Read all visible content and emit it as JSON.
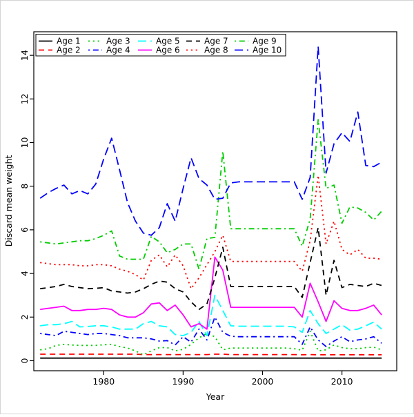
{
  "figure": {
    "background": "#ffffff",
    "frame_color": "#d4d4d4"
  },
  "chart_data": {
    "type": "line",
    "title": "",
    "xlabel": "Year",
    "ylabel": "Discard mean weight",
    "grid": false,
    "legend_position": "top-left",
    "legend_columns": 5,
    "x_ticks": [
      1980,
      1990,
      2000,
      2010
    ],
    "y_ticks": [
      0,
      2,
      4,
      6,
      8,
      10,
      12,
      14
    ],
    "xlim": [
      1971.2,
      2016.9
    ],
    "ylim": [
      -0.46,
      15.08
    ],
    "x": [
      1972,
      1973,
      1974,
      1975,
      1976,
      1977,
      1978,
      1979,
      1980,
      1981,
      1982,
      1983,
      1984,
      1985,
      1986,
      1987,
      1988,
      1989,
      1990,
      1991,
      1992,
      1993,
      1994,
      1995,
      1996,
      1997,
      1998,
      1999,
      2000,
      2001,
      2002,
      2003,
      2004,
      2005,
      2006,
      2007,
      2008,
      2009,
      2010,
      2011,
      2012,
      2013,
      2014,
      2015
    ],
    "series": [
      {
        "name": "Age 1",
        "color": "#000000",
        "linestyle": "solid",
        "values": [
          0.12,
          0.12,
          0.12,
          0.12,
          0.12,
          0.12,
          0.12,
          0.12,
          0.12,
          0.12,
          0.12,
          0.12,
          0.12,
          0.12,
          0.12,
          0.12,
          0.12,
          0.12,
          0.12,
          0.12,
          0.12,
          0.12,
          0.12,
          0.12,
          0.12,
          0.12,
          0.12,
          0.12,
          0.12,
          0.12,
          0.12,
          0.12,
          0.12,
          0.12,
          0.12,
          0.12,
          0.12,
          0.12,
          0.12,
          0.12,
          0.12,
          0.12,
          0.12,
          0.12
        ]
      },
      {
        "name": "Age 2",
        "color": "#FF0000",
        "linestyle": "dashed",
        "values": [
          0.3,
          0.3,
          0.3,
          0.3,
          0.3,
          0.3,
          0.3,
          0.3,
          0.3,
          0.3,
          0.3,
          0.3,
          0.3,
          0.28,
          0.28,
          0.28,
          0.28,
          0.28,
          0.28,
          0.28,
          0.28,
          0.28,
          0.3,
          0.3,
          0.28,
          0.28,
          0.28,
          0.28,
          0.28,
          0.28,
          0.28,
          0.28,
          0.28,
          0.27,
          0.28,
          0.27,
          0.27,
          0.27,
          0.27,
          0.27,
          0.27,
          0.27,
          0.27,
          0.27
        ]
      },
      {
        "name": "Age 3",
        "color": "#00CD00",
        "linestyle": "dotted",
        "values": [
          0.5,
          0.55,
          0.7,
          0.75,
          0.72,
          0.7,
          0.7,
          0.7,
          0.73,
          0.75,
          0.65,
          0.58,
          0.45,
          0.27,
          0.45,
          0.6,
          0.6,
          0.45,
          0.52,
          0.75,
          1.05,
          1.25,
          1.1,
          0.5,
          0.58,
          0.58,
          0.58,
          0.58,
          0.58,
          0.58,
          0.58,
          0.58,
          0.55,
          0.48,
          1.35,
          0.45,
          0.5,
          0.72,
          0.6,
          0.55,
          0.55,
          0.6,
          0.62,
          0.5
        ]
      },
      {
        "name": "Age 4",
        "color": "#0000FF",
        "linestyle": "dotdash",
        "values": [
          1.25,
          1.2,
          1.15,
          1.35,
          1.3,
          1.25,
          1.2,
          1.25,
          1.25,
          1.2,
          1.15,
          1.05,
          1.05,
          1.05,
          1.0,
          0.9,
          0.92,
          0.72,
          1.1,
          0.85,
          1.45,
          0.95,
          2.0,
          1.3,
          1.12,
          1.1,
          1.1,
          1.1,
          1.1,
          1.1,
          1.1,
          1.1,
          1.1,
          0.75,
          1.55,
          0.95,
          0.65,
          0.9,
          1.1,
          0.87,
          0.95,
          1.0,
          1.1,
          0.8
        ]
      },
      {
        "name": "Age 5",
        "color": "#00FFFF",
        "linestyle": "longdash",
        "values": [
          1.6,
          1.65,
          1.65,
          1.7,
          1.8,
          1.55,
          1.57,
          1.6,
          1.6,
          1.55,
          1.45,
          1.45,
          1.45,
          1.7,
          1.8,
          1.6,
          1.55,
          1.2,
          1.15,
          1.3,
          1.8,
          1.15,
          3.0,
          2.3,
          1.6,
          1.58,
          1.58,
          1.58,
          1.58,
          1.58,
          1.58,
          1.58,
          1.55,
          1.3,
          2.3,
          1.7,
          1.25,
          1.45,
          1.65,
          1.4,
          1.45,
          1.6,
          1.77,
          1.45
        ]
      },
      {
        "name": "Age 6",
        "color": "#FF00FF",
        "linestyle": "solid",
        "values": [
          2.35,
          2.4,
          2.45,
          2.5,
          2.3,
          2.3,
          2.35,
          2.35,
          2.4,
          2.35,
          2.1,
          2.0,
          2.0,
          2.2,
          2.6,
          2.65,
          2.3,
          2.55,
          2.1,
          1.55,
          1.7,
          1.45,
          4.75,
          4.15,
          2.45,
          2.45,
          2.45,
          2.45,
          2.45,
          2.45,
          2.45,
          2.45,
          2.45,
          2.0,
          3.55,
          2.7,
          1.8,
          2.75,
          2.4,
          2.3,
          2.3,
          2.4,
          2.55,
          2.1
        ]
      },
      {
        "name": "Age 7",
        "color": "#000000",
        "linestyle": "dashed",
        "values": [
          3.3,
          3.35,
          3.4,
          3.5,
          3.4,
          3.35,
          3.3,
          3.32,
          3.35,
          3.2,
          3.15,
          3.1,
          3.15,
          3.3,
          3.5,
          3.65,
          3.6,
          3.3,
          3.15,
          2.7,
          2.35,
          2.6,
          3.8,
          5.2,
          3.4,
          3.4,
          3.4,
          3.4,
          3.4,
          3.4,
          3.4,
          3.4,
          3.4,
          2.9,
          4.5,
          6.1,
          3.0,
          4.6,
          3.35,
          3.5,
          3.45,
          3.4,
          3.55,
          3.45
        ]
      },
      {
        "name": "Age 8",
        "color": "#FF0000",
        "linestyle": "dotted",
        "values": [
          4.5,
          4.45,
          4.4,
          4.4,
          4.4,
          4.35,
          4.35,
          4.4,
          4.4,
          4.35,
          4.2,
          4.1,
          3.95,
          3.7,
          4.6,
          4.85,
          4.3,
          4.85,
          4.35,
          3.3,
          3.8,
          4.4,
          5.0,
          5.75,
          4.55,
          4.55,
          4.55,
          4.55,
          4.55,
          4.55,
          4.55,
          4.55,
          4.55,
          4.1,
          5.5,
          8.5,
          5.35,
          6.4,
          5.1,
          4.85,
          5.1,
          4.7,
          4.7,
          4.65
        ]
      },
      {
        "name": "Age 9",
        "color": "#00CD00",
        "linestyle": "dotdash",
        "values": [
          5.45,
          5.4,
          5.35,
          5.4,
          5.45,
          5.5,
          5.5,
          5.6,
          5.75,
          5.95,
          4.8,
          4.65,
          4.65,
          4.65,
          5.7,
          5.45,
          4.95,
          5.1,
          5.35,
          5.35,
          4.2,
          5.6,
          5.65,
          9.6,
          6.05,
          6.05,
          6.05,
          6.05,
          6.05,
          6.05,
          6.05,
          6.05,
          6.05,
          5.25,
          6.5,
          11.05,
          7.9,
          8.05,
          6.3,
          7.05,
          7.0,
          6.8,
          6.45,
          6.85
        ]
      },
      {
        "name": "Age 10",
        "color": "#0000FF",
        "linestyle": "longdash",
        "values": [
          7.45,
          7.7,
          7.9,
          8.05,
          7.65,
          7.8,
          7.65,
          8.1,
          9.25,
          10.2,
          8.75,
          7.25,
          6.4,
          5.85,
          5.75,
          6.1,
          7.2,
          6.4,
          7.9,
          9.3,
          8.35,
          8.05,
          7.4,
          7.45,
          8.15,
          8.2,
          8.2,
          8.2,
          8.2,
          8.2,
          8.2,
          8.2,
          8.2,
          7.4,
          8.4,
          14.4,
          8.6,
          9.95,
          10.45,
          10.05,
          11.4,
          8.95,
          8.9,
          9.1
        ]
      }
    ]
  }
}
